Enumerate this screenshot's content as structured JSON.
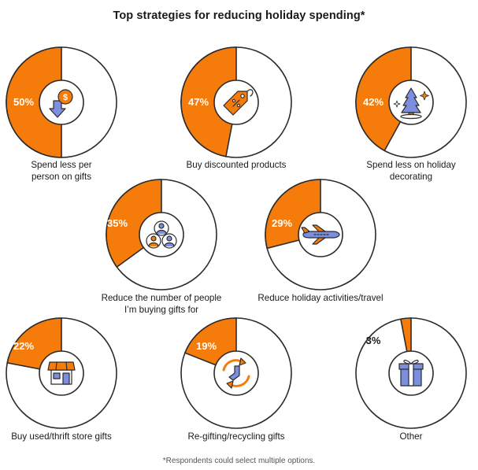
{
  "title": "Top strategies for reducing holiday spending*",
  "footnote": "*Respondents could select multiple options.",
  "colors": {
    "accent": "#f57c0a",
    "ring": "#2b2b2b",
    "icon_blue": "#7b8fde",
    "icon_orange": "#f57c0a"
  },
  "chart_data": {
    "type": "pie",
    "title": "Top strategies for reducing holiday spending*",
    "unit": "%",
    "categories": [
      "Spend less per person on gifts",
      "Buy discounted products",
      "Spend less on holiday decorating",
      "Reduce the number of people I'm buying gifts for",
      "Reduce holiday activities/travel",
      "Buy used/thrift store gifts",
      "Re-gifting/recycling gifts",
      "Other"
    ],
    "values": [
      50,
      47,
      42,
      35,
      29,
      22,
      19,
      3
    ],
    "items": [
      {
        "value": 50,
        "pct_label": "50%",
        "label_lines": [
          "Spend less per",
          "person on gifts"
        ],
        "icon": "dollar-down-icon"
      },
      {
        "value": 47,
        "pct_label": "47%",
        "label_lines": [
          "Buy discounted products"
        ],
        "icon": "discount-tag-icon"
      },
      {
        "value": 42,
        "pct_label": "42%",
        "label_lines": [
          "Spend less on holiday",
          "decorating"
        ],
        "icon": "christmas-tree-icon"
      },
      {
        "value": 35,
        "pct_label": "35%",
        "label_lines": [
          "Reduce the number of people",
          "I’m buying gifts for"
        ],
        "icon": "people-group-icon"
      },
      {
        "value": 29,
        "pct_label": "29%",
        "label_lines": [
          "Reduce holiday activities/travel"
        ],
        "icon": "airplane-icon"
      },
      {
        "value": 22,
        "pct_label": "22%",
        "label_lines": [
          "Buy used/thrift store gifts"
        ],
        "icon": "storefront-icon"
      },
      {
        "value": 19,
        "pct_label": "19%",
        "label_lines": [
          "Re-gifting/recycling gifts"
        ],
        "icon": "recycle-sock-icon"
      },
      {
        "value": 3,
        "pct_label": "3%",
        "label_lines": [
          "Other"
        ],
        "icon": "gift-box-icon"
      }
    ]
  }
}
